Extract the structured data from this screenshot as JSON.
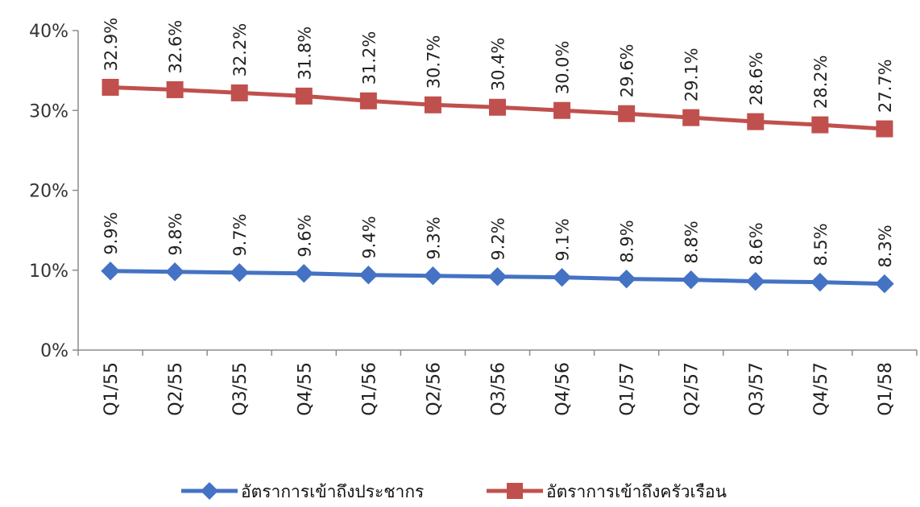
{
  "chart_data": {
    "type": "line",
    "categories": [
      "Q1/55",
      "Q2/55",
      "Q3/55",
      "Q4/55",
      "Q1/56",
      "Q2/56",
      "Q3/56",
      "Q4/56",
      "Q1/57",
      "Q2/57",
      "Q3/57",
      "Q4/57",
      "Q1/58"
    ],
    "ylim": [
      0,
      40
    ],
    "yticks": [
      0,
      10,
      20,
      30,
      40
    ],
    "ytick_labels": [
      "0%",
      "10%",
      "20%",
      "30%",
      "40%"
    ],
    "grid": false,
    "legend_position": "bottom",
    "series": [
      {
        "name": "อัตราการเข้าถึงประชากร",
        "color": "#4472C4",
        "marker": "diamond",
        "values": [
          9.9,
          9.8,
          9.7,
          9.6,
          9.4,
          9.3,
          9.2,
          9.1,
          8.9,
          8.8,
          8.6,
          8.5,
          8.3
        ],
        "labels": [
          "9.9%",
          "9.8%",
          "9.7%",
          "9.6%",
          "9.4%",
          "9.3%",
          "9.2%",
          "9.1%",
          "8.9%",
          "8.8%",
          "8.6%",
          "8.5%",
          "8.3%"
        ]
      },
      {
        "name": "อัตราการเข้าถึงครัวเรือน",
        "color": "#C0504D",
        "marker": "square",
        "values": [
          32.9,
          32.6,
          32.2,
          31.8,
          31.2,
          30.7,
          30.4,
          30.0,
          29.6,
          29.1,
          28.6,
          28.2,
          27.7
        ],
        "labels": [
          "32.9%",
          "32.6%",
          "32.2%",
          "31.8%",
          "31.2%",
          "30.7%",
          "30.4%",
          "30.0%",
          "29.6%",
          "29.1%",
          "28.6%",
          "28.2%",
          "27.7%"
        ]
      }
    ]
  }
}
